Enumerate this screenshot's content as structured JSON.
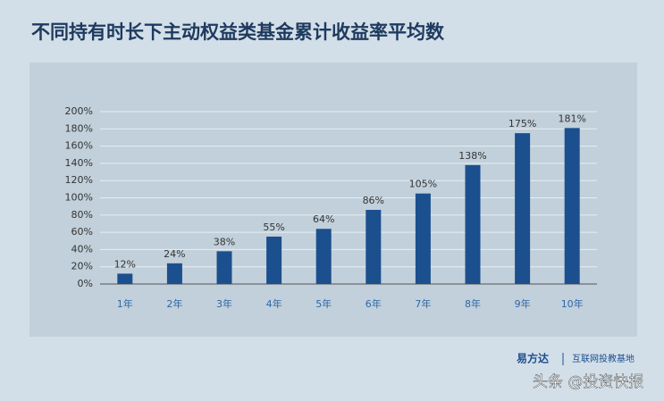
{
  "chart_data": {
    "type": "bar",
    "title": "不同持有时长下主动权益类基金累计收益率平均数",
    "categories": [
      "1年",
      "2年",
      "3年",
      "4年",
      "5年",
      "6年",
      "7年",
      "8年",
      "9年",
      "10年"
    ],
    "values": [
      12,
      24,
      38,
      55,
      64,
      86,
      105,
      138,
      175,
      181
    ],
    "value_labels": [
      "12%",
      "24%",
      "38%",
      "55%",
      "64%",
      "86%",
      "105%",
      "138%",
      "175%",
      "181%"
    ],
    "color": "#1c4f8e",
    "ylim": [
      0,
      200
    ],
    "yticks": [
      {
        "value": 0,
        "label": "0%"
      },
      {
        "value": 20,
        "label": "20%"
      },
      {
        "value": 40,
        "label": "40%"
      },
      {
        "value": 60,
        "label": "60%"
      },
      {
        "value": 80,
        "label": "80%"
      },
      {
        "value": 100,
        "label": "100%"
      },
      {
        "value": 120,
        "label": "120%"
      },
      {
        "value": 140,
        "label": "140%"
      },
      {
        "value": 160,
        "label": "160%"
      },
      {
        "value": 180,
        "label": "180%"
      },
      {
        "value": 200,
        "label": "200%"
      }
    ],
    "grid": true
  },
  "footer": {
    "brand": "易方达",
    "tagline": "互联网投教基地",
    "watermark": "头条 @投资快报"
  }
}
